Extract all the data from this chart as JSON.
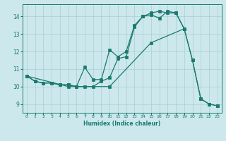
{
  "xlabel": "Humidex (Indice chaleur)",
  "bg_color": "#cce8ec",
  "grid_color": "#aacdd4",
  "line_color": "#1a7a6e",
  "xlim": [
    -0.5,
    23.5
  ],
  "ylim": [
    8.5,
    14.7
  ],
  "xticks": [
    0,
    1,
    2,
    3,
    4,
    5,
    6,
    7,
    8,
    9,
    10,
    11,
    12,
    13,
    14,
    15,
    16,
    17,
    18,
    19,
    20,
    21,
    22,
    23
  ],
  "yticks": [
    9,
    10,
    11,
    12,
    13,
    14
  ],
  "series1_x": [
    0,
    1,
    2,
    3,
    4,
    5,
    6,
    7,
    8,
    9,
    10,
    11,
    12,
    13,
    14,
    15,
    16,
    17,
    18,
    19,
    20,
    21,
    22,
    23
  ],
  "series1_y": [
    10.6,
    10.3,
    10.2,
    10.2,
    10.1,
    10.1,
    10.0,
    10.0,
    10.0,
    10.3,
    10.5,
    11.6,
    11.7,
    13.4,
    14.0,
    14.1,
    13.9,
    14.3,
    14.2,
    13.3,
    11.5,
    9.3,
    9.0,
    8.9
  ],
  "series2_x": [
    0,
    1,
    2,
    3,
    4,
    5,
    6,
    7,
    8,
    9,
    10,
    11,
    12,
    13,
    14,
    15,
    16,
    17,
    18,
    19
  ],
  "series2_y": [
    10.6,
    10.3,
    10.2,
    10.2,
    10.1,
    10.1,
    10.0,
    11.1,
    10.4,
    10.4,
    12.1,
    11.7,
    12.0,
    13.5,
    14.0,
    14.2,
    14.3,
    14.2,
    14.2,
    13.3
  ],
  "series3_x": [
    0,
    5,
    10,
    15,
    19,
    20,
    21,
    22,
    23
  ],
  "series3_y": [
    10.6,
    10.0,
    10.0,
    12.5,
    13.3,
    11.5,
    9.3,
    9.0,
    8.9
  ]
}
